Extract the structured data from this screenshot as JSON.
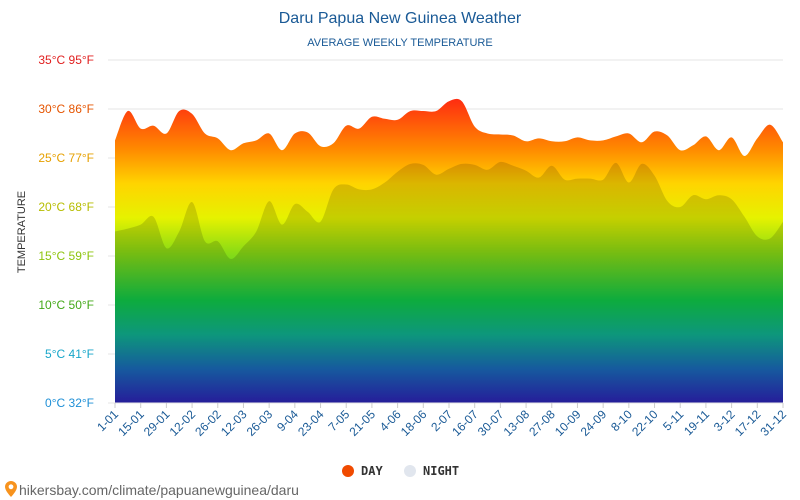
{
  "chart_data": {
    "type": "area",
    "title": "Daru Papua New Guinea Weather",
    "subtitle": "AVERAGE WEEKLY TEMPERATURE",
    "ylabel": "TEMPERATURE",
    "ylim": [
      0,
      35
    ],
    "y_ticks": [
      {
        "label": "0°C 32°F",
        "value": 0,
        "color": "#1e8fd6"
      },
      {
        "label": "5°C 41°F",
        "value": 5,
        "color": "#17a6c9"
      },
      {
        "label": "10°C 50°F",
        "value": 10,
        "color": "#42a817"
      },
      {
        "label": "15°C 59°F",
        "value": 15,
        "color": "#8dc40d"
      },
      {
        "label": "20°C 68°F",
        "value": 20,
        "color": "#b6bd00"
      },
      {
        "label": "25°C 77°F",
        "value": 25,
        "color": "#e6a000"
      },
      {
        "label": "30°C 86°F",
        "value": 30,
        "color": "#e55400"
      },
      {
        "label": "35°C 95°F",
        "value": 35,
        "color": "#e01e1e"
      }
    ],
    "x_labels": [
      "1-01",
      "15-01",
      "29-01",
      "12-02",
      "26-02",
      "12-03",
      "26-03",
      "9-04",
      "23-04",
      "7-05",
      "21-05",
      "4-06",
      "18-06",
      "2-07",
      "16-07",
      "30-07",
      "13-08",
      "27-08",
      "10-09",
      "24-09",
      "8-10",
      "22-10",
      "5-11",
      "19-11",
      "3-12",
      "17-12",
      "31-12"
    ],
    "grid": true,
    "legend_position": "bottom",
    "series": [
      {
        "name": "DAY",
        "color": "#f04a00",
        "values": [
          26.8,
          29.8,
          28.0,
          28.3,
          27.5,
          29.8,
          29.5,
          27.5,
          27.0,
          25.8,
          26.5,
          26.8,
          27.5,
          25.8,
          27.5,
          27.6,
          26.2,
          26.5,
          28.3,
          28.0,
          29.2,
          29.0,
          28.9,
          29.8,
          29.8,
          29.8,
          30.8,
          30.8,
          28.2,
          27.5,
          27.4,
          27.3,
          26.7,
          27.0,
          26.7,
          26.7,
          27.1,
          26.8,
          26.8,
          27.2,
          27.5,
          26.6,
          27.7,
          27.3,
          25.8,
          26.3,
          27.2,
          25.8,
          27.1,
          25.2,
          27.0,
          28.4,
          26.6
        ]
      },
      {
        "name": "NIGHT",
        "color": "#e1e6ee",
        "values": [
          17.5,
          17.8,
          18.2,
          19.0,
          15.8,
          17.5,
          20.5,
          16.5,
          16.5,
          14.7,
          16.0,
          17.5,
          20.6,
          18.2,
          20.3,
          19.5,
          18.5,
          21.8,
          22.3,
          21.8,
          21.8,
          22.5,
          23.6,
          24.4,
          24.3,
          23.3,
          23.9,
          24.4,
          24.3,
          23.8,
          24.6,
          24.2,
          23.7,
          23.0,
          24.2,
          22.8,
          22.9,
          22.9,
          22.8,
          24.5,
          22.5,
          24.4,
          23.2,
          20.6,
          20.0,
          21.2,
          20.8,
          21.2,
          20.8,
          19.0,
          17.0,
          16.8,
          18.5
        ]
      }
    ]
  },
  "legend": {
    "day_label": "DAY",
    "night_label": "NIGHT"
  },
  "footer": {
    "url": "hikersbay.com/climate/papuanewguinea/daru",
    "pin_icon": "map-pin-icon"
  }
}
